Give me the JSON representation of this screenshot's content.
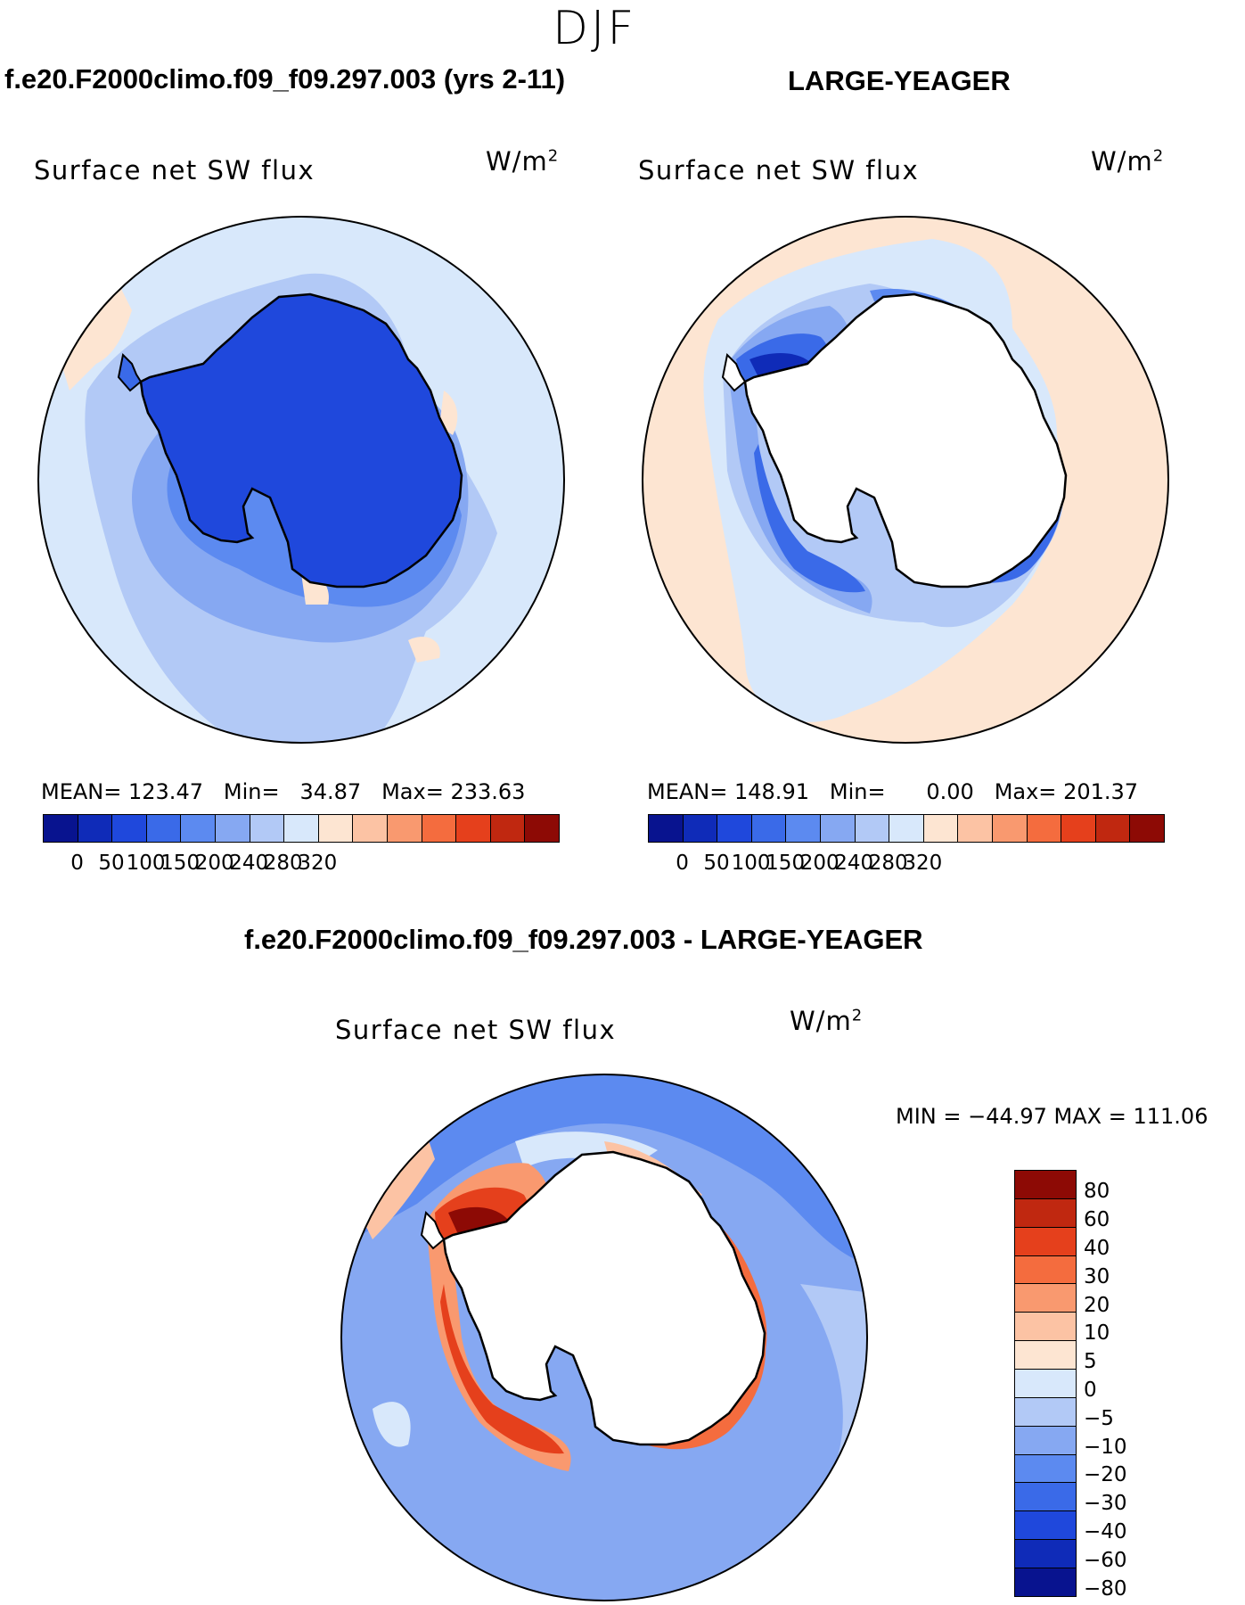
{
  "season": "DJF",
  "panels": [
    {
      "title": "f.e20.F2000climo.f09_f09.297.003 (yrs 2-11)",
      "variable": "Surface net SW flux",
      "units_base": "W/m",
      "units_exp": "2",
      "stats": {
        "mean_label": "MEAN=",
        "mean": "123.47",
        "min_label": "Min=",
        "min": "34.87",
        "max_label": "Max=",
        "max": "233.63"
      }
    },
    {
      "title": "LARGE-YEAGER",
      "variable": "Surface net SW flux",
      "units_base": "W/m",
      "units_exp": "2",
      "stats": {
        "mean_label": "MEAN=",
        "mean": "148.91",
        "min_label": "Min=",
        "min": "0.00",
        "max_label": "Max=",
        "max": "201.37"
      }
    },
    {
      "title": "f.e20.F2000climo.f09_f09.297.003 - LARGE-YEAGER",
      "variable": "Surface net SW flux",
      "units_base": "W/m",
      "units_exp": "2",
      "minmax": "MIN = −44.97 MAX = 111.06"
    }
  ],
  "colorbar_main": {
    "colors": [
      "#08138f",
      "#0f2bb8",
      "#1f48dc",
      "#3a6ae8",
      "#5c8af0",
      "#86a8f2",
      "#b2c9f6",
      "#d8e8fb",
      "#fde5d2",
      "#fcc3a4",
      "#f9996f",
      "#f46c3e",
      "#e5401c",
      "#c02810",
      "#8d0a05"
    ],
    "ticks": [
      "0",
      "50",
      "100",
      "150",
      "200",
      "240",
      "280",
      "320"
    ]
  },
  "colorbar_diff": {
    "colors": [
      "#8d0a05",
      "#c02810",
      "#e5401c",
      "#f46c3e",
      "#f9996f",
      "#fcc3a4",
      "#fde5d2",
      "#d8e8fb",
      "#b2c9f6",
      "#86a8f2",
      "#5c8af0",
      "#3a6ae8",
      "#1f48dc",
      "#0f2bb8",
      "#08138f"
    ],
    "ticks": [
      "80",
      "60",
      "40",
      "30",
      "20",
      "10",
      "5",
      "0",
      "−5",
      "−10",
      "−20",
      "−30",
      "−40",
      "−60",
      "−80"
    ]
  }
}
